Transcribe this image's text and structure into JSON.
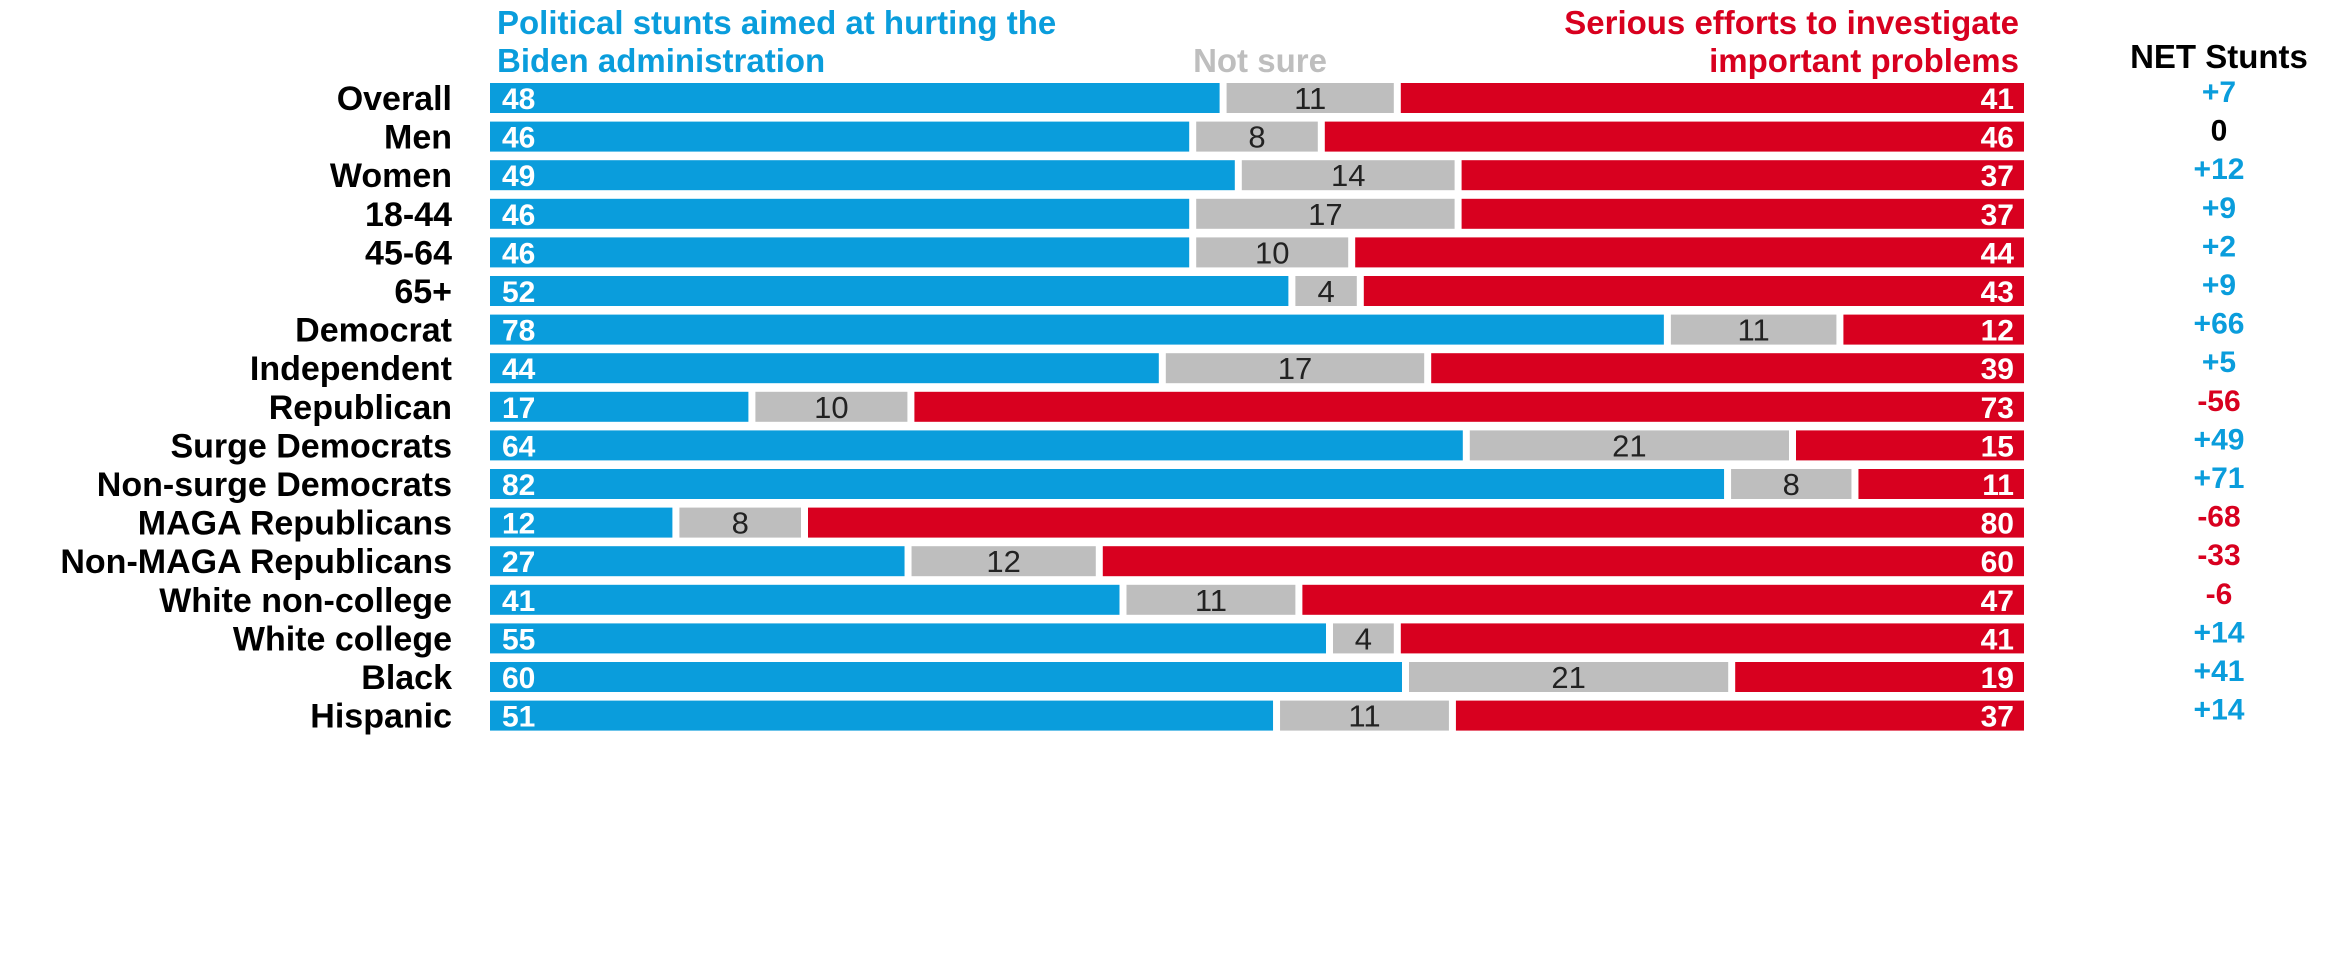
{
  "colors": {
    "stunts": "#0a9ddc",
    "not_sure": "#bebebe",
    "serious": "#d8001f",
    "neutral_text": "#000000"
  },
  "headers": {
    "stunts_line1": "Political stunts aimed at hurting the",
    "stunts_line2": "Biden administration",
    "not_sure": "Not sure",
    "serious_line1": "Serious efforts to investigate",
    "serious_line2": "important problems",
    "net": "NET Stunts"
  },
  "chart_data": {
    "type": "bar",
    "orientation": "horizontal",
    "stacked": true,
    "categories": [
      "Overall",
      "Men",
      "Women",
      "18-44",
      "45-64",
      "65+",
      "Democrat",
      "Independent",
      "Republican",
      "Surge Democrats",
      "Non-surge Democrats",
      "MAGA Republicans",
      "Non-MAGA Republicans",
      "White non-college",
      "White college",
      "Black",
      "Hispanic"
    ],
    "groups": [
      [
        0
      ],
      [
        1,
        2
      ],
      [
        3,
        4,
        5
      ],
      [
        6,
        7,
        8
      ],
      [
        9,
        10
      ],
      [
        11,
        12
      ],
      [
        13,
        14,
        15,
        16
      ]
    ],
    "series": [
      {
        "name": "Political stunts aimed at hurting the Biden administration",
        "values": [
          48,
          46,
          49,
          46,
          46,
          52,
          78,
          44,
          17,
          64,
          82,
          12,
          27,
          41,
          55,
          60,
          51
        ]
      },
      {
        "name": "Not sure",
        "values": [
          11,
          8,
          14,
          17,
          10,
          4,
          11,
          17,
          10,
          21,
          8,
          8,
          12,
          11,
          4,
          21,
          11
        ]
      },
      {
        "name": "Serious efforts to investigate important problems",
        "values": [
          41,
          46,
          37,
          37,
          44,
          43,
          12,
          39,
          73,
          15,
          11,
          80,
          60,
          47,
          41,
          19,
          37
        ]
      }
    ],
    "net": [
      "+7",
      "0",
      "+12",
      "+9",
      "+2",
      "+9",
      "+66",
      "+5",
      "-56",
      "+49",
      "+71",
      "-68",
      "-33",
      "-6",
      "+14",
      "+41",
      "+14"
    ],
    "xlim": [
      0,
      100
    ],
    "grid": false,
    "legend": "top"
  }
}
